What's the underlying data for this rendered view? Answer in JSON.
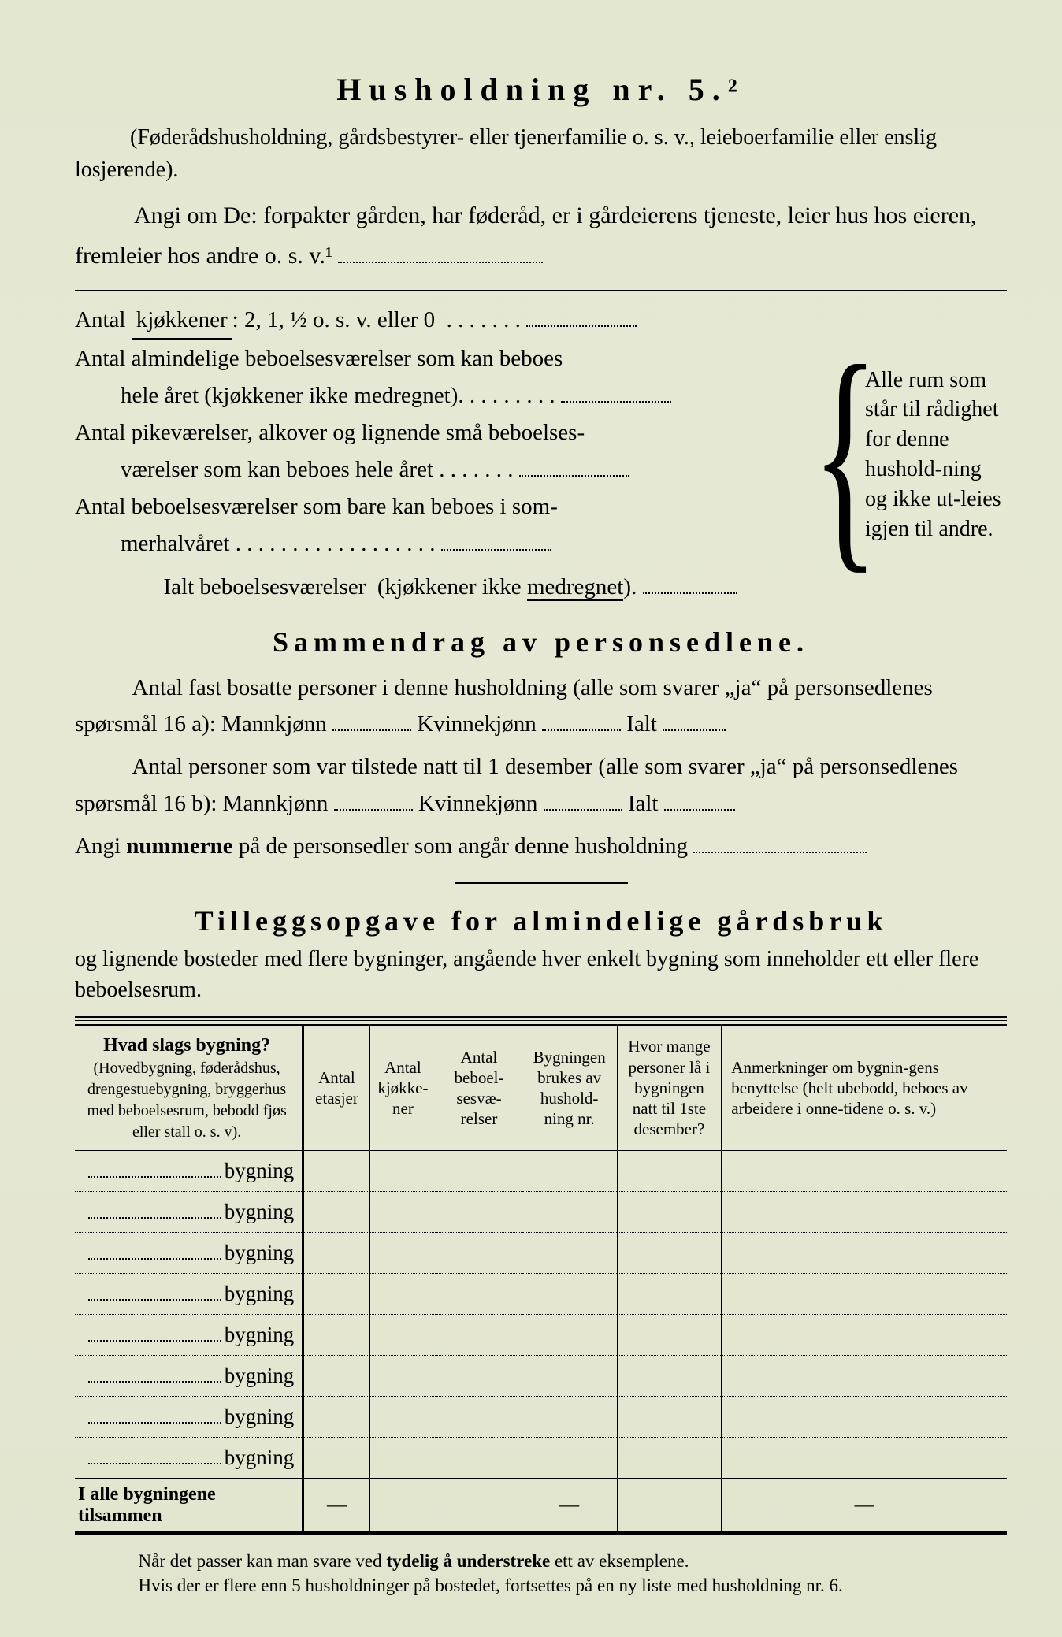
{
  "title": "Husholdning nr. 5.²",
  "intro1": "(Føderådshusholdning, gårdsbestyrer- eller tjenerfamilie o. s. v., leieboerfamilie eller enslig losjerende).",
  "intro2": "Angi om De:  forpakter gården, har føderåd, er i gårdeierens tjeneste, leier hus hos eieren, fremleier hos andre o. s. v.¹",
  "rooms": {
    "r1": "Antal kjøkkener: 2, 1, ½ o. s. v. eller 0 . . . . . . .",
    "r2a": "Antal almindelige beboelsesværelser som kan beboes",
    "r2b": "hele året (kjøkkener ikke medregnet). . . . . . . . .",
    "r3a": "Antal pikeværelser, alkover og lignende små beboelses-",
    "r3b": "værelser som kan beboes hele året . . . . . . .",
    "r4a": "Antal beboelsesværelser som bare kan beboes i som-",
    "r4b": "merhalvåret . . . . . . . . . . . . . . . . . .",
    "total": "Ialt beboelsesværelser  (kjøkkener ikke medregnet).",
    "margin": "Alle rum som står til rådighet for denne hushold-ning og ikke ut-leies igjen til andre."
  },
  "section2_h": "Sammendrag av personsedlene.",
  "p1": "Antal fast bosatte personer i denne husholdning (alle som svarer „ja“ på personsedlenes spørsmål 16 a): Mannkjønn",
  "p1b": "Kvinnekjønn",
  "p1c": "Ialt",
  "p2": "Antal personer som var tilstede natt til 1 desember (alle som svarer „ja“ på personsedlenes spørsmål 16 b): Mannkjønn",
  "p2b": "Kvinnekjønn",
  "p2c": "Ialt",
  "p3a": "Angi ",
  "p3b": "nummerne",
  "p3c": " på de personsedler som angår denne husholdning",
  "section3_h": "Tilleggsopgave for almindelige gårdsbruk",
  "section3_sub": "og lignende bosteder med flere bygninger, angående hver enkelt bygning som inneholder ett eller flere beboelsesrum.",
  "table": {
    "headers": {
      "h1_strong": "Hvad slags bygning?",
      "h1_sub": "(Hovedbygning, føderådshus, drengestuebygning, bryggerhus med beboelsesrum, bebodd fjøs eller stall o. s. v).",
      "h2": "Antal etasjer",
      "h3": "Antal kjøkke-ner",
      "h4": "Antal beboel-sesvæ-relser",
      "h5": "Bygningen brukes av hushold-ning nr.",
      "h6": "Hvor mange personer lå i bygningen natt til 1ste desember?",
      "h7": "Anmerkninger om bygnin-gens benyttelse (helt ubebodd, beboes av arbeidere i onne-tidene o. s. v.)"
    },
    "row_label": "bygning",
    "row_count": 8,
    "total_label": "I alle bygningene tilsammen",
    "dash": "—"
  },
  "footnote1": "Når det passer kan man svare ved tydelig å understreke ett av eksemplene.",
  "footnote1_bold": "tydelig å understreke",
  "footnote2": "Hvis der er flere enn 5 husholdninger på bostedet, fortsettes på en ny liste med husholdning nr. 6."
}
